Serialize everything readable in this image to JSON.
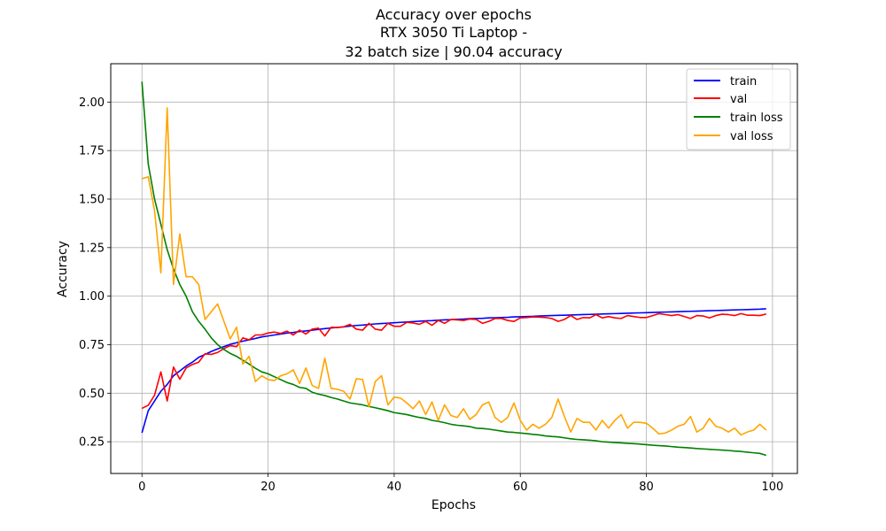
{
  "chart_data": {
    "type": "line",
    "title_lines": [
      "Accuracy over epochs",
      "RTX 3050 Ti Laptop -",
      "32 batch size | 90.04 accuracy"
    ],
    "xlabel": "Epochs",
    "ylabel": "Accuracy",
    "xlim": [
      -4.95,
      103.95
    ],
    "ylim": [
      0.0865,
      2.1975
    ],
    "xticks": [
      0,
      20,
      40,
      60,
      80,
      100
    ],
    "yticks": [
      0.25,
      0.5,
      0.75,
      1.0,
      1.25,
      1.5,
      1.75,
      2.0
    ],
    "ytick_labels": [
      "0.25",
      "0.50",
      "0.75",
      "1.00",
      "1.25",
      "1.50",
      "1.75",
      "2.00"
    ],
    "grid": true,
    "legend_position": "upper right",
    "x": [
      0,
      1,
      2,
      3,
      4,
      5,
      6,
      7,
      8,
      9,
      10,
      11,
      12,
      13,
      14,
      15,
      16,
      17,
      18,
      19,
      20,
      21,
      22,
      23,
      24,
      25,
      26,
      27,
      28,
      29,
      30,
      31,
      32,
      33,
      34,
      35,
      36,
      37,
      38,
      39,
      40,
      41,
      42,
      43,
      44,
      45,
      46,
      47,
      48,
      49,
      50,
      51,
      52,
      53,
      54,
      55,
      56,
      57,
      58,
      59,
      60,
      61,
      62,
      63,
      64,
      65,
      66,
      67,
      68,
      69,
      70,
      71,
      72,
      73,
      74,
      75,
      76,
      77,
      78,
      79,
      80,
      81,
      82,
      83,
      84,
      85,
      86,
      87,
      88,
      89,
      90,
      91,
      92,
      93,
      94,
      95,
      96,
      97,
      98,
      99
    ],
    "series": [
      {
        "name": "train",
        "color": "#0000ff",
        "values": [
          0.296,
          0.41,
          0.46,
          0.51,
          0.545,
          0.59,
          0.615,
          0.64,
          0.66,
          0.685,
          0.7,
          0.715,
          0.728,
          0.74,
          0.752,
          0.76,
          0.768,
          0.775,
          0.782,
          0.79,
          0.795,
          0.8,
          0.805,
          0.81,
          0.813,
          0.818,
          0.821,
          0.825,
          0.829,
          0.833,
          0.836,
          0.839,
          0.842,
          0.846,
          0.849,
          0.851,
          0.854,
          0.857,
          0.859,
          0.861,
          0.863,
          0.865,
          0.867,
          0.869,
          0.871,
          0.873,
          0.874,
          0.876,
          0.878,
          0.879,
          0.881,
          0.882,
          0.884,
          0.885,
          0.886,
          0.888,
          0.889,
          0.89,
          0.891,
          0.893,
          0.894,
          0.895,
          0.896,
          0.898,
          0.899,
          0.9,
          0.901,
          0.902,
          0.903,
          0.904,
          0.905,
          0.906,
          0.907,
          0.908,
          0.909,
          0.91,
          0.911,
          0.912,
          0.913,
          0.914,
          0.915,
          0.916,
          0.917,
          0.918,
          0.919,
          0.92,
          0.921,
          0.922,
          0.923,
          0.924,
          0.925,
          0.926,
          0.927,
          0.928,
          0.929,
          0.93,
          0.931,
          0.932,
          0.933,
          0.935
        ]
      },
      {
        "name": "val",
        "color": "#ff0000",
        "values": [
          0.422,
          0.438,
          0.49,
          0.61,
          0.46,
          0.635,
          0.572,
          0.63,
          0.648,
          0.66,
          0.703,
          0.7,
          0.71,
          0.73,
          0.745,
          0.74,
          0.785,
          0.775,
          0.8,
          0.8,
          0.81,
          0.815,
          0.808,
          0.82,
          0.8,
          0.825,
          0.805,
          0.83,
          0.835,
          0.795,
          0.84,
          0.838,
          0.842,
          0.855,
          0.83,
          0.825,
          0.86,
          0.83,
          0.825,
          0.86,
          0.845,
          0.845,
          0.865,
          0.862,
          0.855,
          0.87,
          0.85,
          0.875,
          0.86,
          0.88,
          0.878,
          0.875,
          0.882,
          0.88,
          0.86,
          0.87,
          0.885,
          0.885,
          0.875,
          0.87,
          0.888,
          0.89,
          0.893,
          0.892,
          0.89,
          0.885,
          0.87,
          0.88,
          0.9,
          0.88,
          0.89,
          0.888,
          0.905,
          0.888,
          0.895,
          0.888,
          0.885,
          0.9,
          0.895,
          0.89,
          0.89,
          0.9,
          0.91,
          0.905,
          0.9,
          0.905,
          0.895,
          0.885,
          0.9,
          0.898,
          0.888,
          0.9,
          0.907,
          0.905,
          0.9,
          0.91,
          0.902,
          0.902,
          0.9,
          0.908
        ]
      },
      {
        "name": "train loss",
        "color": "#008000",
        "values": [
          2.105,
          1.68,
          1.5,
          1.37,
          1.24,
          1.14,
          1.06,
          1.0,
          0.92,
          0.87,
          0.83,
          0.785,
          0.75,
          0.725,
          0.705,
          0.69,
          0.67,
          0.65,
          0.628,
          0.61,
          0.6,
          0.585,
          0.57,
          0.555,
          0.545,
          0.53,
          0.525,
          0.505,
          0.495,
          0.488,
          0.478,
          0.47,
          0.46,
          0.45,
          0.445,
          0.44,
          0.432,
          0.425,
          0.418,
          0.41,
          0.4,
          0.395,
          0.39,
          0.382,
          0.375,
          0.37,
          0.36,
          0.355,
          0.348,
          0.34,
          0.335,
          0.332,
          0.328,
          0.32,
          0.318,
          0.315,
          0.31,
          0.305,
          0.3,
          0.298,
          0.295,
          0.292,
          0.288,
          0.285,
          0.28,
          0.277,
          0.275,
          0.27,
          0.265,
          0.262,
          0.26,
          0.258,
          0.255,
          0.25,
          0.248,
          0.246,
          0.244,
          0.242,
          0.24,
          0.238,
          0.235,
          0.232,
          0.23,
          0.228,
          0.225,
          0.222,
          0.22,
          0.218,
          0.215,
          0.213,
          0.211,
          0.209,
          0.207,
          0.205,
          0.202,
          0.2,
          0.196,
          0.193,
          0.19,
          0.18
        ]
      },
      {
        "name": "val loss",
        "color": "#ffa500",
        "values": [
          1.605,
          1.615,
          1.44,
          1.12,
          1.97,
          1.06,
          1.32,
          1.1,
          1.1,
          1.06,
          0.88,
          0.92,
          0.96,
          0.87,
          0.78,
          0.84,
          0.65,
          0.69,
          0.56,
          0.59,
          0.57,
          0.565,
          0.59,
          0.6,
          0.62,
          0.55,
          0.63,
          0.54,
          0.525,
          0.68,
          0.525,
          0.52,
          0.51,
          0.47,
          0.575,
          0.57,
          0.43,
          0.56,
          0.59,
          0.44,
          0.48,
          0.475,
          0.45,
          0.42,
          0.46,
          0.39,
          0.455,
          0.36,
          0.44,
          0.385,
          0.375,
          0.42,
          0.365,
          0.39,
          0.44,
          0.455,
          0.375,
          0.35,
          0.375,
          0.45,
          0.36,
          0.31,
          0.34,
          0.32,
          0.34,
          0.375,
          0.47,
          0.38,
          0.3,
          0.37,
          0.35,
          0.35,
          0.31,
          0.36,
          0.32,
          0.36,
          0.39,
          0.32,
          0.35,
          0.35,
          0.345,
          0.32,
          0.29,
          0.295,
          0.31,
          0.33,
          0.34,
          0.38,
          0.3,
          0.32,
          0.37,
          0.33,
          0.32,
          0.3,
          0.32,
          0.285,
          0.3,
          0.31,
          0.34,
          0.31
        ]
      }
    ]
  }
}
